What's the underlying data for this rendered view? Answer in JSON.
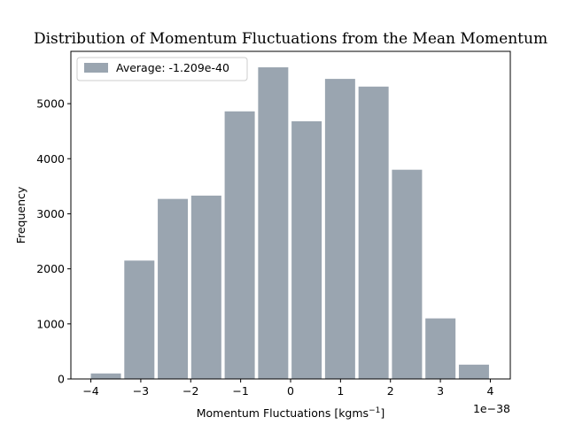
{
  "chart_data": {
    "type": "bar",
    "title": "Distribution of Momentum Fluctuations from the Mean Momentum",
    "xlabel": "Momentum Fluctuations [kgms",
    "xlabel_exponent": "−1",
    "xlabel_close": "]",
    "ylabel": "Frequency",
    "x_offset_label": "1e−38",
    "x_scale": "1e-38",
    "xlim": [
      -4.4,
      4.4
    ],
    "ylim": [
      0,
      5950
    ],
    "x_ticks": [
      -4,
      -3,
      -2,
      -1,
      0,
      1,
      2,
      3,
      4
    ],
    "x_tick_labels": [
      "−4",
      "−3",
      "−2",
      "−1",
      "0",
      "1",
      "2",
      "3",
      "4"
    ],
    "y_ticks": [
      0,
      1000,
      2000,
      3000,
      4000,
      5000
    ],
    "y_tick_labels": [
      "0",
      "1000",
      "2000",
      "3000",
      "4000",
      "5000"
    ],
    "bin_edges": [
      -4.0,
      -3.33,
      -2.66,
      -1.99,
      -1.32,
      -0.65,
      0.02,
      0.69,
      1.36,
      2.03,
      2.7,
      3.37,
      4.04
    ],
    "series": [
      {
        "name": "Average: -1.209e-40",
        "color": "#9aa5b0",
        "values": [
          100,
          2150,
          3270,
          3330,
          4860,
          5660,
          4680,
          5450,
          5310,
          3800,
          1100,
          260
        ]
      }
    ],
    "legend_position": "top-left",
    "grid": false
  }
}
